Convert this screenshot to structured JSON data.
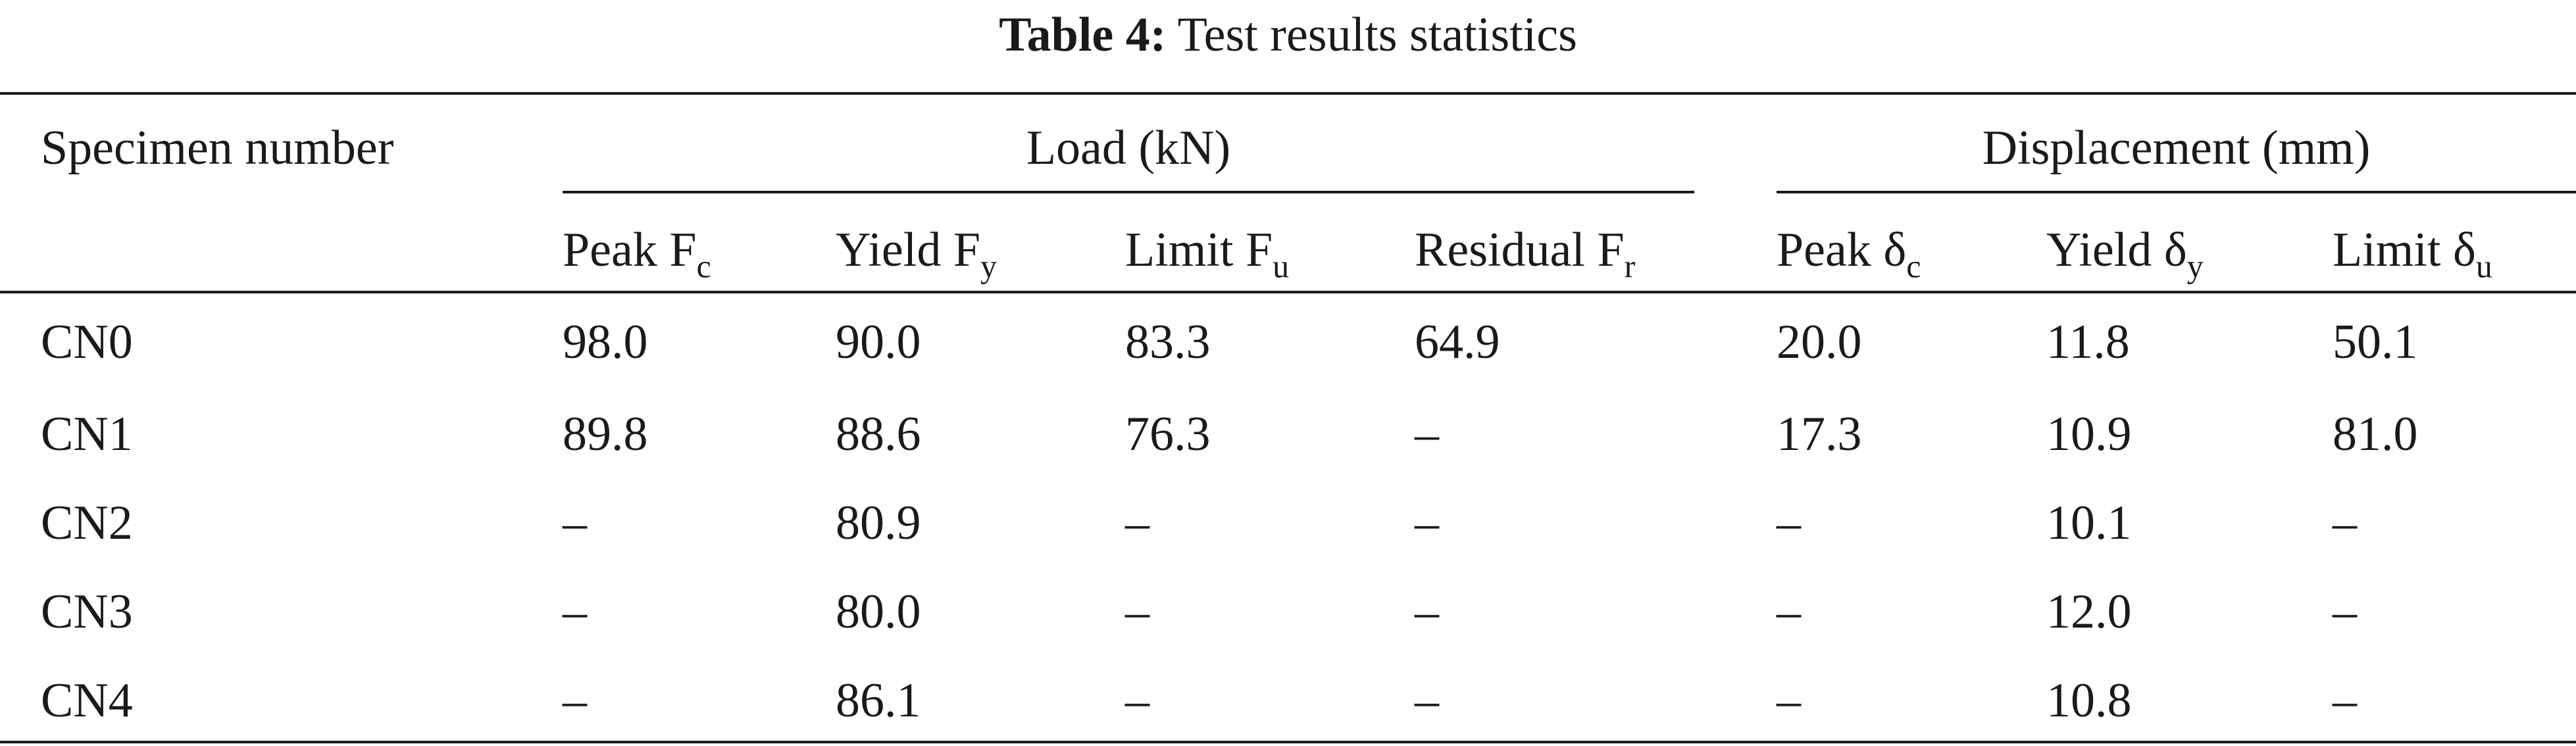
{
  "caption": {
    "label": "Table 4:",
    "text": "Test results statistics"
  },
  "table": {
    "row_header": "Specimen number",
    "groups": {
      "load": "Load (kN)",
      "displacement": "Displacement (mm)"
    },
    "columns": [
      {
        "name": "Peak F",
        "sub": "c"
      },
      {
        "name": "Yield F",
        "sub": "y"
      },
      {
        "name": "Limit F",
        "sub": "u"
      },
      {
        "name": "Residual F",
        "sub": "r"
      },
      {
        "name": "Peak δ",
        "sub": "c"
      },
      {
        "name": "Yield δ",
        "sub": "y"
      },
      {
        "name": "Limit δ",
        "sub": "u"
      }
    ],
    "rows": [
      {
        "specimen": "CN0",
        "values": [
          "98.0",
          "90.0",
          "83.3",
          "64.9",
          "20.0",
          "11.8",
          "50.1"
        ]
      },
      {
        "specimen": "CN1",
        "values": [
          "89.8",
          "88.6",
          "76.3",
          "–",
          "17.3",
          "10.9",
          "81.0"
        ]
      },
      {
        "specimen": "CN2",
        "values": [
          "–",
          "80.9",
          "–",
          "–",
          "–",
          "10.1",
          "–"
        ]
      },
      {
        "specimen": "CN3",
        "values": [
          "–",
          "80.0",
          "–",
          "–",
          "–",
          "12.0",
          "–"
        ]
      },
      {
        "specimen": "CN4",
        "values": [
          "–",
          "86.1",
          "–",
          "–",
          "–",
          "10.8",
          "–"
        ]
      }
    ]
  }
}
